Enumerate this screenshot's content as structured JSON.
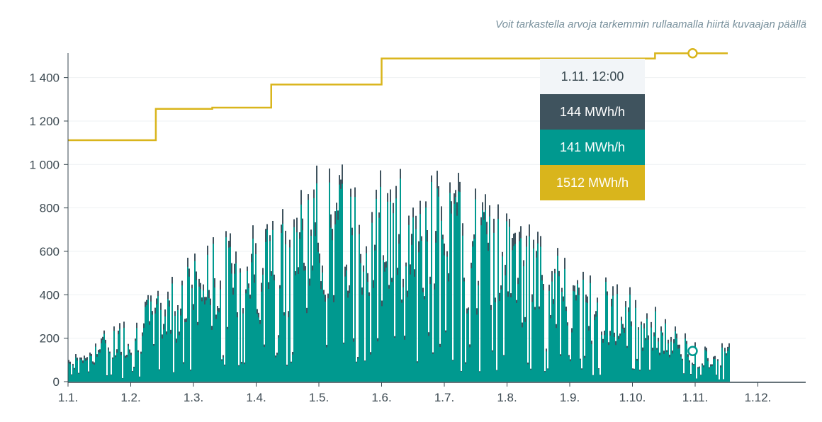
{
  "hint_text": "Voit tarkastella arvoja tarkemmin rullaamalla hiirtä kuvaajan päällä",
  "tooltip": {
    "time": "1.11. 12:00",
    "value_a": "144 MWh/h",
    "value_b": "141 MWh/h",
    "value_c": "1512 MWh/h"
  },
  "colors": {
    "series_a": "#3f535e",
    "series_b": "#00998f",
    "series_c": "#d9b51c",
    "axis": "#37474f",
    "grid": "#eef1f3"
  },
  "chart_data": {
    "type": "area",
    "ylim": [
      0,
      1500
    ],
    "yticks": [
      {
        "value": 0,
        "label": "0"
      },
      {
        "value": 200,
        "label": "200"
      },
      {
        "value": 400,
        "label": "400"
      },
      {
        "value": 600,
        "label": "600"
      },
      {
        "value": 800,
        "label": "800"
      },
      {
        "value": 1000,
        "label": "1 000"
      },
      {
        "value": 1200,
        "label": "1 200"
      },
      {
        "value": 1400,
        "label": "1 400"
      }
    ],
    "xticks": [
      "1.1.",
      "1.2.",
      "1.3.",
      "1.4.",
      "1.5.",
      "1.6.",
      "1.7.",
      "1.8.",
      "1.9.",
      "1.10.",
      "1.11.",
      "1.12."
    ],
    "grid": true,
    "series": [
      {
        "color_key": "series_a",
        "monthly_peaks": [
          140,
          330,
          620,
          800,
          1010,
          1020,
          1010,
          820,
          580,
          440,
          180
        ]
      },
      {
        "color_key": "series_b",
        "monthly_peaks": [
          130,
          320,
          610,
          790,
          1000,
          1010,
          1000,
          810,
          570,
          430,
          170
        ]
      },
      {
        "color_key": "series_c",
        "step_values": [
          {
            "from": "1.1.",
            "value": 1112
          },
          {
            "from": "1.2.",
            "value": 1256
          },
          {
            "from": "1.4.",
            "value": 1262
          },
          {
            "from": "1.5.",
            "value": 1368
          },
          {
            "from": "1.7.",
            "value": 1488
          },
          {
            "from": "1.10.",
            "value": 1512
          }
        ]
      }
    ],
    "highlight": {
      "x": "1.11. 12:00",
      "a": 144,
      "b": 141,
      "c": 1512
    }
  }
}
